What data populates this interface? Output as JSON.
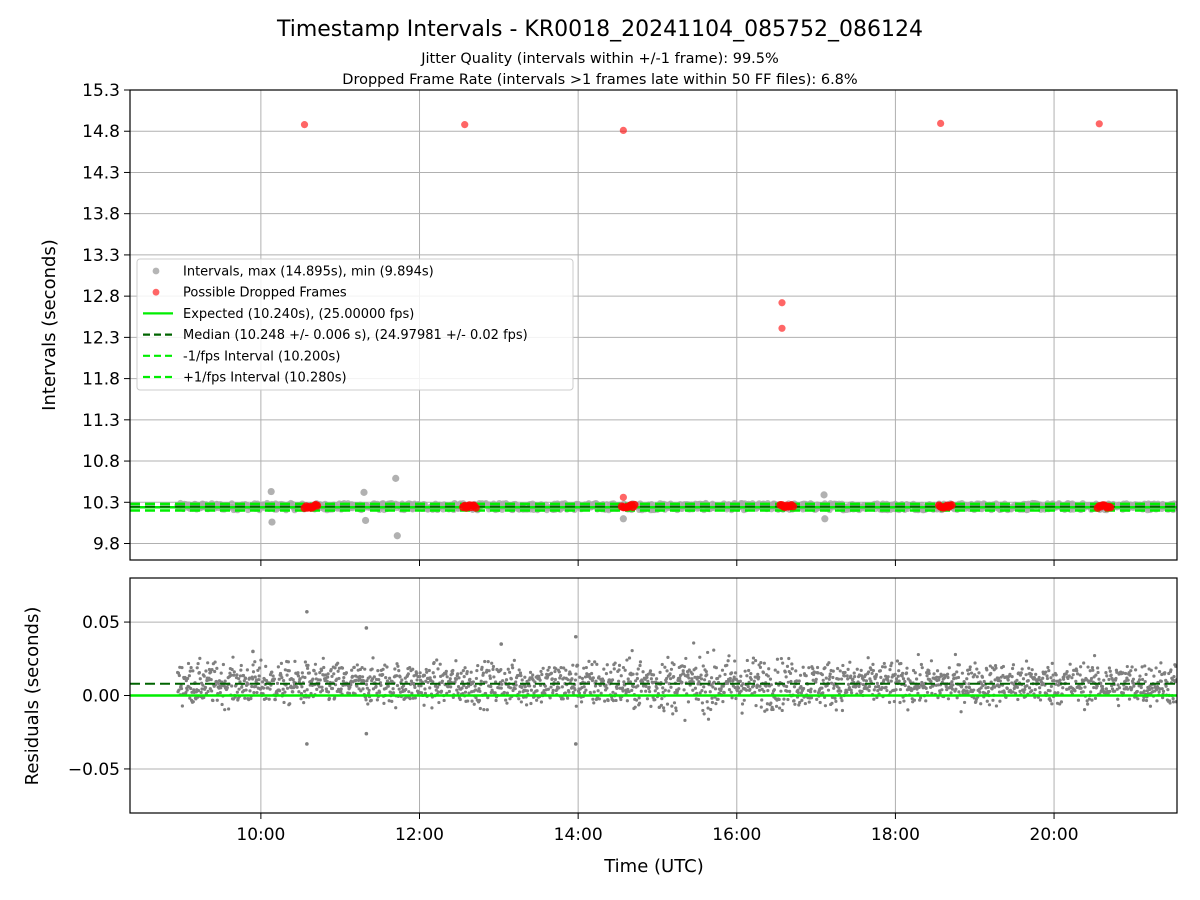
{
  "header": {
    "title": "Timestamp Intervals - KR0018_20241104_085752_086124",
    "subtitle_jitter": "Jitter Quality (intervals within +/-1 frame): 99.5%",
    "subtitle_dropped": "Dropped Frame Rate (intervals >1 frames late within 50 FF files): 6.8%"
  },
  "colors": {
    "intervals": "#a8a8a8",
    "dropped": "#ff0000",
    "expected": "#00ee00",
    "median": "#006400",
    "fps_bounds": "#00ee00",
    "residuals": "#7f7f7f",
    "grid": "#b0b0b0"
  },
  "chart_data": [
    {
      "type": "scatter",
      "ylabel": "Intervals (seconds)",
      "xlim": [
        8.35,
        21.55
      ],
      "ylim": [
        9.6,
        15.3
      ],
      "x_ticks": [
        10,
        12,
        14,
        16,
        18,
        20
      ],
      "x_tick_labels": [
        "10:00",
        "12:00",
        "14:00",
        "16:00",
        "18:00",
        "20:00"
      ],
      "y_ticks": [
        9.8,
        10.3,
        10.8,
        11.3,
        11.8,
        12.3,
        12.8,
        13.3,
        13.8,
        14.3,
        14.8,
        15.3
      ],
      "y_tick_labels": [
        "9.8",
        "10.3",
        "10.8",
        "11.3",
        "11.8",
        "12.3",
        "12.8",
        "13.3",
        "13.8",
        "14.3",
        "14.8",
        "15.3"
      ],
      "grid": true,
      "legend_position": "center-left",
      "legend": [
        {
          "label": "Intervals, max (14.895s), min (9.894s)",
          "style": "marker",
          "color": "#a8a8a8"
        },
        {
          "label": "Possible Dropped Frames",
          "style": "marker",
          "color": "#ff0000"
        },
        {
          "label": "Expected (10.240s), (25.00000 fps)",
          "style": "solid",
          "color": "#00ee00"
        },
        {
          "label": "Median (10.248 +/- 0.006 s), (24.97981 +/- 0.02 fps)",
          "style": "dashed",
          "color": "#006400"
        },
        {
          "label": "-1/fps Interval (10.200s)",
          "style": "dashed",
          "color": "#00ee00"
        },
        {
          "label": "+1/fps Interval (10.280s)",
          "style": "dashed",
          "color": "#00ee00"
        }
      ],
      "reference_lines": {
        "expected": 10.24,
        "median": 10.248,
        "minus_1fps": 10.2,
        "plus_1fps": 10.28
      },
      "interval_band": {
        "x_start": 8.95,
        "x_end": 21.55,
        "ymin": 10.205,
        "ymax": 10.29
      },
      "interval_outliers": [
        {
          "x": 10.13,
          "y": 10.43
        },
        {
          "x": 10.14,
          "y": 10.06
        },
        {
          "x": 11.3,
          "y": 10.42
        },
        {
          "x": 11.32,
          "y": 10.08
        },
        {
          "x": 11.7,
          "y": 10.59
        },
        {
          "x": 11.72,
          "y": 9.894
        },
        {
          "x": 14.57,
          "y": 10.1
        },
        {
          "x": 17.1,
          "y": 10.39
        },
        {
          "x": 17.11,
          "y": 10.1
        }
      ],
      "dropped_frames": [
        {
          "x": 10.55,
          "y": 14.88
        },
        {
          "x": 12.57,
          "y": 14.88
        },
        {
          "x": 14.57,
          "y": 14.81
        },
        {
          "x": 16.57,
          "y": 12.72
        },
        {
          "x": 16.57,
          "y": 12.41
        },
        {
          "x": 18.57,
          "y": 14.895
        },
        {
          "x": 20.57,
          "y": 14.89
        },
        {
          "x": 14.57,
          "y": 10.36
        }
      ],
      "dropped_clusters": [
        {
          "x_start": 10.55,
          "x_end": 10.72,
          "y": 10.25
        },
        {
          "x_start": 12.55,
          "x_end": 12.72,
          "y": 10.25
        },
        {
          "x_start": 14.55,
          "x_end": 14.72,
          "y": 10.25
        },
        {
          "x_start": 16.55,
          "x_end": 16.72,
          "y": 10.25
        },
        {
          "x_start": 18.55,
          "x_end": 18.72,
          "y": 10.25
        },
        {
          "x_start": 20.55,
          "x_end": 20.72,
          "y": 10.25
        }
      ]
    },
    {
      "type": "scatter",
      "xlabel": "Time (UTC)",
      "ylabel": "Residuals (seconds)",
      "xlim": [
        8.35,
        21.55
      ],
      "ylim": [
        -0.08,
        0.08
      ],
      "x_ticks": [
        10,
        12,
        14,
        16,
        18,
        20
      ],
      "x_tick_labels": [
        "10:00",
        "12:00",
        "14:00",
        "16:00",
        "18:00",
        "20:00"
      ],
      "y_ticks": [
        0.05,
        0.0,
        -0.05
      ],
      "y_tick_labels": [
        "0.05",
        "0.00",
        "−0.05"
      ],
      "grid": true,
      "reference_lines": {
        "expected": 0.0,
        "median": 0.008
      },
      "residual_cloud": {
        "x_start": 8.95,
        "x_end": 21.55,
        "center": 0.008,
        "spread": 0.007
      },
      "residual_outliers": [
        {
          "x": 10.58,
          "y": 0.057
        },
        {
          "x": 10.58,
          "y": -0.033
        },
        {
          "x": 11.33,
          "y": 0.046
        },
        {
          "x": 11.33,
          "y": -0.026
        },
        {
          "x": 13.97,
          "y": 0.04
        },
        {
          "x": 13.97,
          "y": -0.033
        },
        {
          "x": 9.9,
          "y": 0.03
        },
        {
          "x": 13.03,
          "y": 0.035
        }
      ]
    }
  ]
}
